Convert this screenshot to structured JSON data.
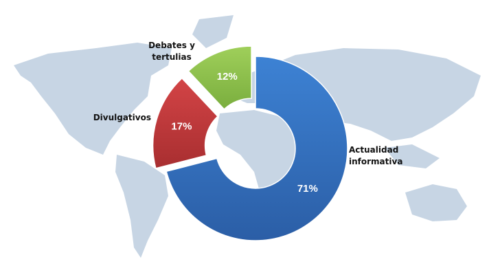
{
  "chart_data": {
    "type": "donut",
    "categories": [
      "Actualidad informativa",
      "Divulgativos",
      "Debates y tertulias"
    ],
    "values": [
      71,
      17,
      12
    ],
    "value_labels": [
      "71%",
      "17%",
      "12%"
    ],
    "colors": [
      "#3473c4",
      "#c23a3c",
      "#8dbf4b"
    ],
    "exploded": [
      false,
      true,
      true
    ]
  }
}
